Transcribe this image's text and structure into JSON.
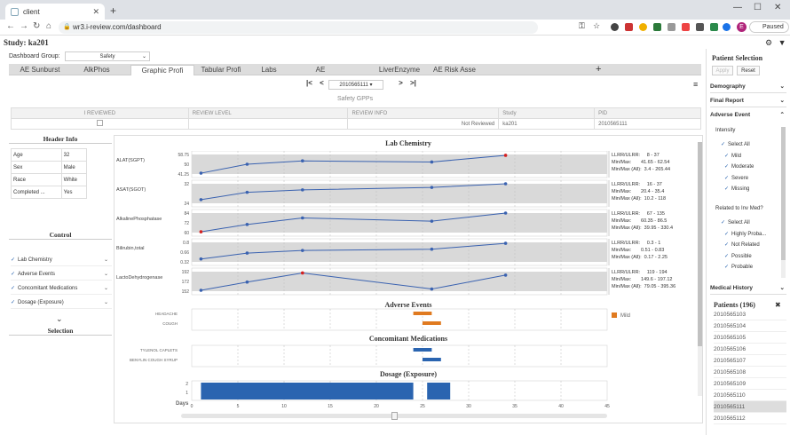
{
  "browser": {
    "tab_title": "client",
    "url": "wr3.i-review.com/dashboard",
    "profile_initial": "E",
    "profile_status": "Paused"
  },
  "app": {
    "study_title": "Study: ka201",
    "dashboard_group_label": "Dashboard Group:",
    "dashboard_group_value": "Safety",
    "tabs": [
      "AE Sunburst",
      "AlkPhos",
      "Graphic Profi",
      "Tabular Profi",
      "Labs",
      "AE",
      "LiverEnzyme",
      "AE Risk Asse"
    ],
    "active_tab": 2,
    "plus": "+",
    "pager": {
      "first": "|<",
      "prev": "<",
      "value": "2010565111",
      "next": ">",
      "last": ">|"
    },
    "grid": {
      "title": "Safety GPPs",
      "headers": [
        "I REVIEWED",
        "REVIEW LEVEL",
        "REVIEW INFO",
        "Study",
        "PID"
      ],
      "row": [
        "",
        "",
        "Not Reviewed",
        "ka201",
        "2010565111"
      ]
    }
  },
  "header_info": {
    "title": "Header Info",
    "rows": [
      [
        "Age",
        "32"
      ],
      [
        "Sex",
        "Male"
      ],
      [
        "Race",
        "White"
      ],
      [
        "Completed ...",
        "Yes"
      ]
    ]
  },
  "control": {
    "title": "Control",
    "items": [
      "Lab Chemistry",
      "Adverse Events",
      "Concomitant Medications",
      "Dosage (Exposure)"
    ],
    "check": "✓",
    "chevron": "⌄"
  },
  "selection": {
    "title": "Selection"
  },
  "chart_data": [
    {
      "type": "line",
      "title": "Lab Chemistry",
      "x": [
        1,
        6,
        12,
        26,
        34
      ],
      "series": [
        {
          "name": "ALAT(SGPT)",
          "values": [
            42,
            50,
            53,
            52,
            58
          ],
          "ticks": [
            "58.75",
            "50",
            "41.25"
          ],
          "ylim": [
            41.25,
            58.75
          ],
          "stats": "LLRR/ULRR:     8 - 37\nMin/Max:       41.65 - 62.54\nMin/Max (All):  3.4 - 265.44"
        },
        {
          "name": "ASAT(SGOT)",
          "values": [
            23,
            29,
            31,
            33,
            36
          ],
          "ticks": [
            "32",
            "24"
          ],
          "ylim": [
            20,
            36
          ],
          "stats": "LLRR/ULRR:     16 - 37\nMin/Max:       20.4 - 35.4\nMin/Max (All):  10.2 - 118"
        },
        {
          "name": "AlkalinePhosphatase",
          "values": [
            61,
            70,
            78,
            74,
            84
          ],
          "ticks": [
            "84",
            "72",
            "60"
          ],
          "ylim": [
            60,
            84
          ],
          "stats": "LLRR/ULRR:     67 - 135\nMin/Max:       60.35 - 86.5\nMin/Max (All):  39.95 - 330.4"
        },
        {
          "name": "Bilirubin,total",
          "values": [
            0.34,
            0.52,
            0.6,
            0.64,
            0.82
          ],
          "ticks": [
            "0.8",
            "0.66",
            "0.32"
          ],
          "ylim": [
            0.25,
            0.85
          ],
          "stats": "LLRR/ULRR:     0.3 - 1\nMin/Max:       0.51 - 0.83\nMin/Max (All):  0.17 - 2.25"
        },
        {
          "name": "LactoDehydrogenase",
          "values": [
            152,
            171,
            192,
            155,
            187
          ],
          "ticks": [
            "192",
            "172",
            "152"
          ],
          "ylim": [
            150,
            195
          ],
          "stats": "LLRR/ULRR:     119 - 194\nMin/Max:       149.6 - 197.12\nMin/Max (All):  79.05 - 395.36"
        }
      ]
    },
    {
      "type": "bar",
      "title": "Adverse Events",
      "categories": [
        "HEADACHE",
        "COUGH"
      ],
      "legend": [
        "Mild"
      ],
      "bars": [
        [
          24,
          26
        ],
        [
          25,
          27
        ]
      ]
    },
    {
      "type": "bar",
      "title": "Concomitant Medications",
      "categories": [
        "TYLENOL CAPLETS",
        "BENYLIN COUGH SYRUP"
      ],
      "bars": [
        [
          24,
          26
        ],
        [
          25,
          27
        ]
      ]
    },
    {
      "type": "bar",
      "title": "Dosage (Exposure)",
      "yticks": [
        "2",
        "1"
      ],
      "ylabel": "Days",
      "xticks": [
        "0",
        "5",
        "10",
        "15",
        "20",
        "25",
        "30",
        "35",
        "40",
        "45"
      ],
      "xlim": [
        0,
        45
      ],
      "bars": [
        [
          1,
          24,
          2
        ],
        [
          25.5,
          28,
          2
        ]
      ]
    }
  ],
  "right_panel": {
    "title": "Patient Selection",
    "apply": "Apply",
    "reset": "Reset",
    "sections": [
      "Demography",
      "Final Report",
      "Adverse Event"
    ],
    "intensity": {
      "title": "Intensity",
      "items": [
        "Select All",
        "Mild",
        "Moderate",
        "Severe",
        "Missing"
      ]
    },
    "related": {
      "title": "Related to Inv Med?",
      "items": [
        "Select All",
        "Highly Proba...",
        "Not Related",
        "Possible",
        "Probable"
      ]
    },
    "medical_history": "Medical History",
    "patients_title": "Patients (196)",
    "patients": [
      "2010565103",
      "2010565104",
      "2010565105",
      "2010565106",
      "2010565107",
      "2010565108",
      "2010565109",
      "2010565110",
      "2010565111",
      "2010565112"
    ],
    "selected_patient": "2010565111"
  },
  "colors": {
    "accent": "#2a64b0",
    "line": "#3a62b0",
    "highlight": "#d42020",
    "ae": "#e07a20",
    "band": "#d9d9d9"
  }
}
